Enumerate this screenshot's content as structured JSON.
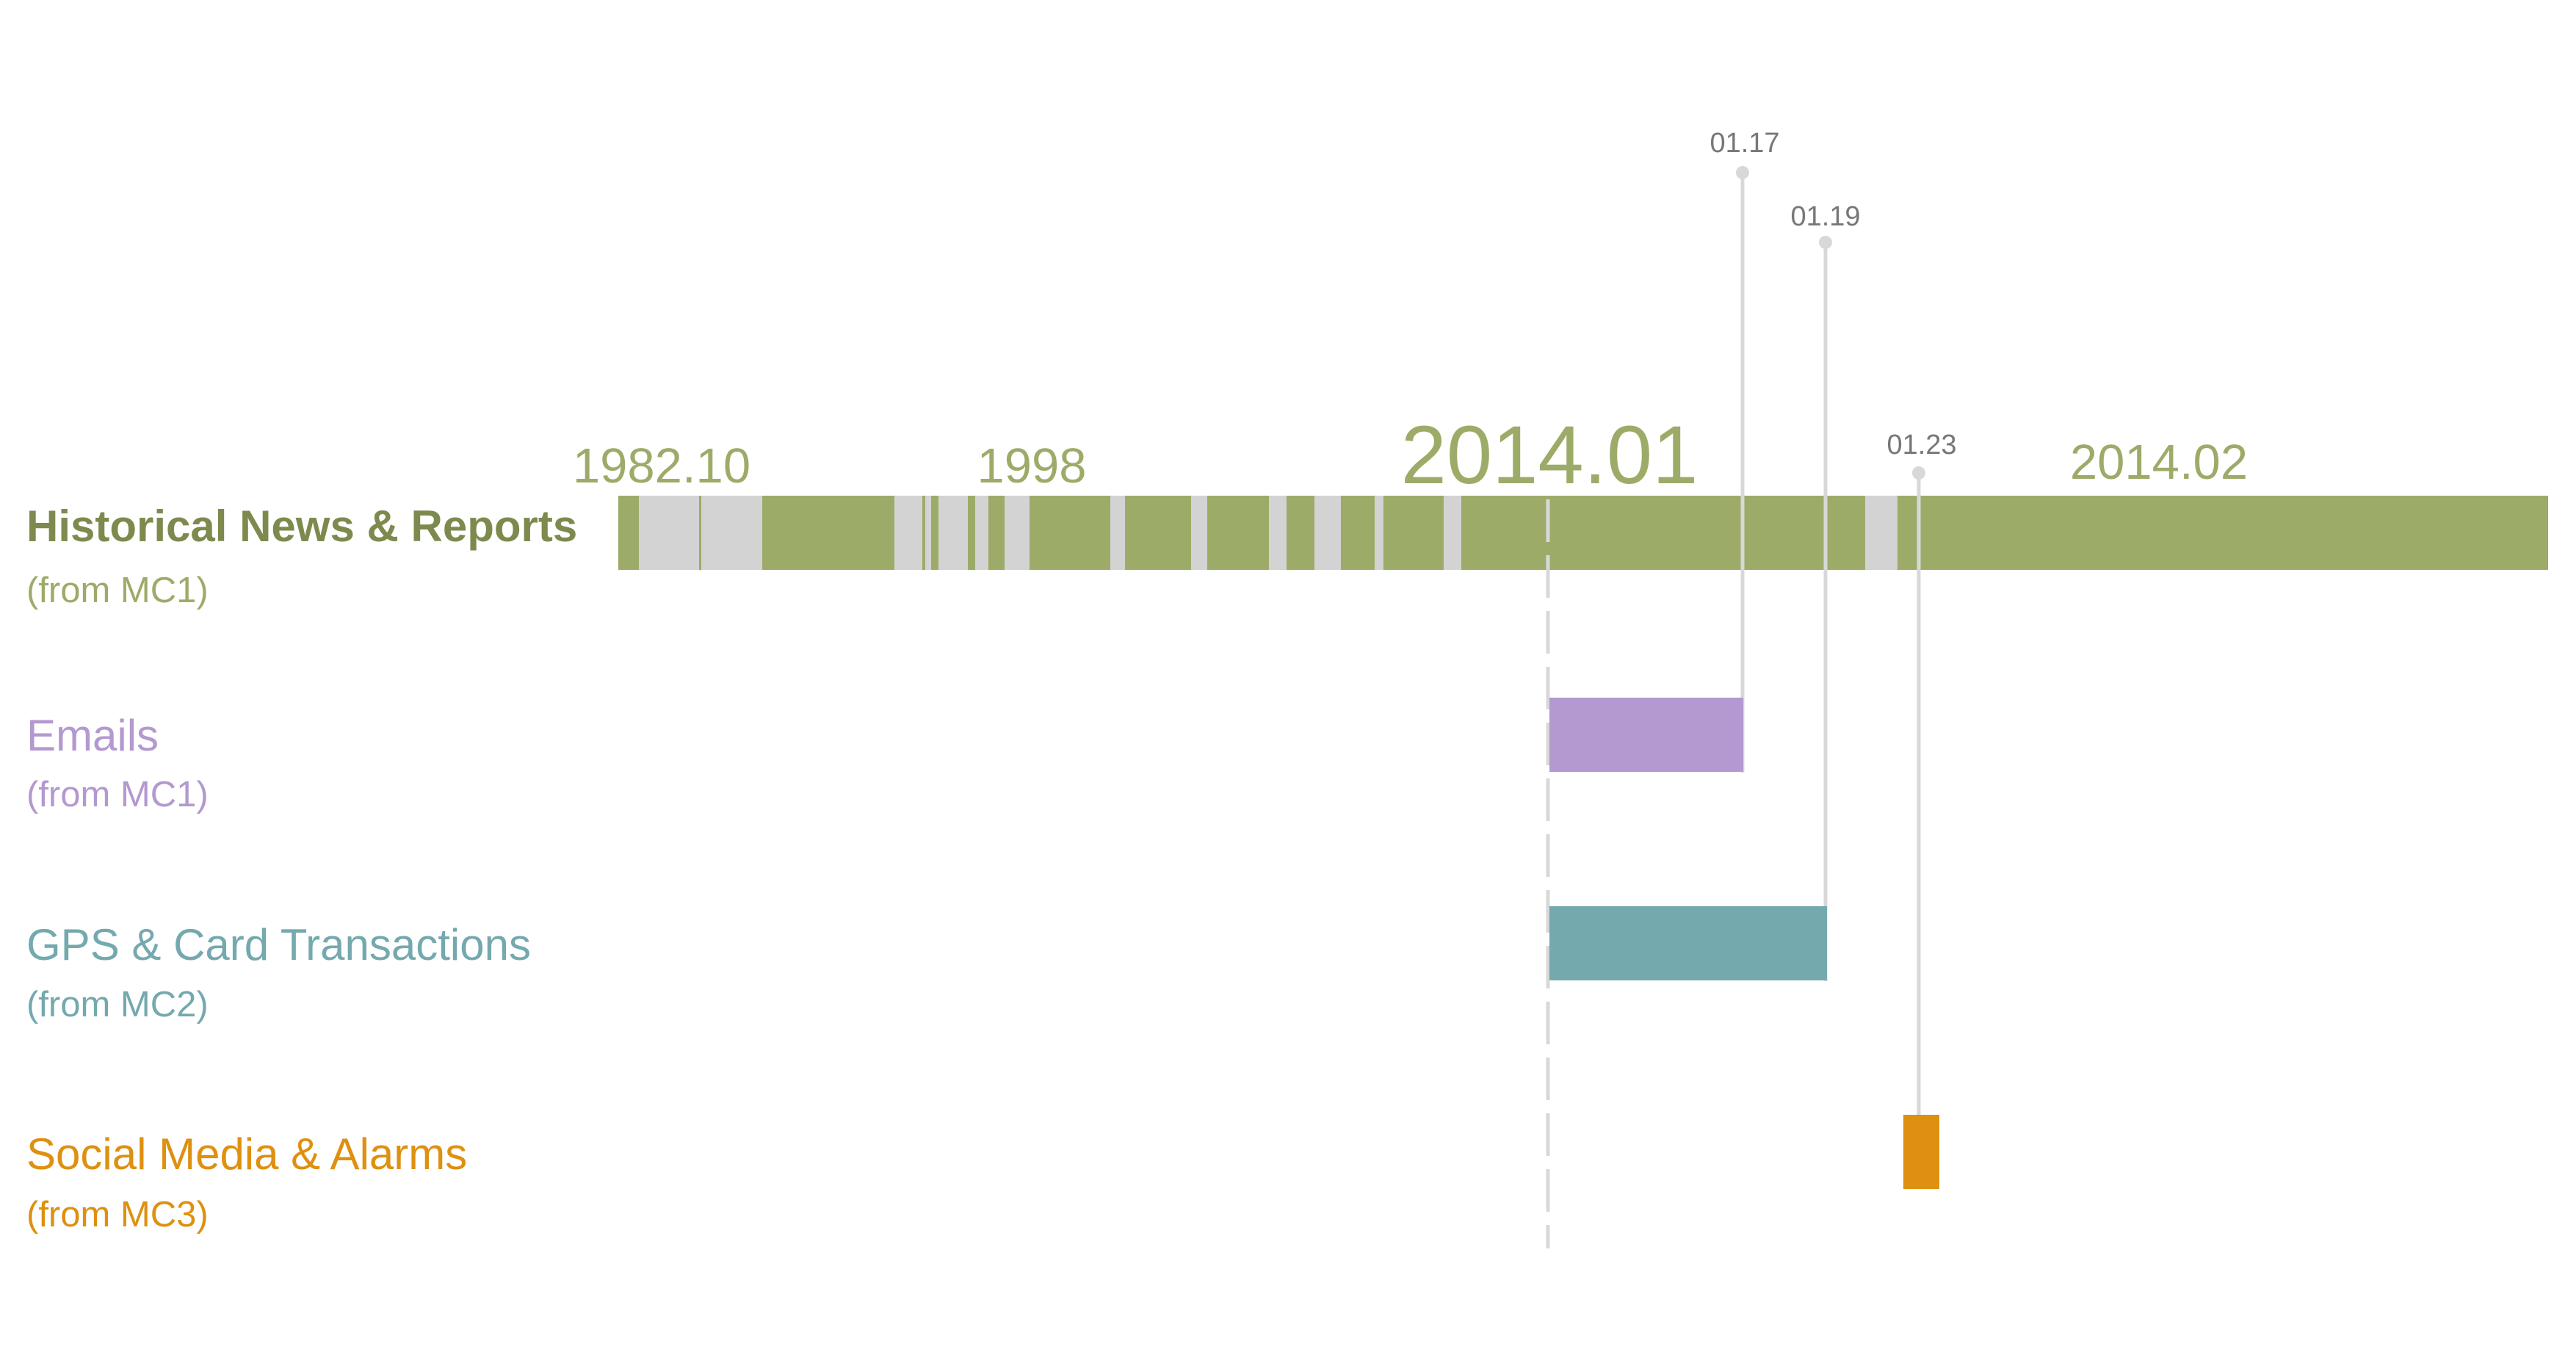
{
  "colors": {
    "news": "#9dab69",
    "news_title": "#7d8a4e",
    "gap": "#d3d3d3",
    "emails": "#b399cf",
    "gps": "#74a9ae",
    "social": "#de9010",
    "guide": "#d8d8d8",
    "callout_text": "#777777"
  },
  "rows": [
    {
      "key": "news",
      "title": "Historical  News & Reports",
      "source": "(from MC1)"
    },
    {
      "key": "emails",
      "title": "Emails",
      "source": "(from MC1)"
    },
    {
      "key": "gps",
      "title": "GPS & Card Transactions",
      "source": "(from MC2)"
    },
    {
      "key": "social",
      "title": "Social Media & Alarms",
      "source": "(from MC3)"
    }
  ],
  "era_labels": [
    {
      "text": "1982.10",
      "major": false
    },
    {
      "text": "1998",
      "major": false
    },
    {
      "text": "2014.01",
      "major": true
    },
    {
      "text": "2014.02",
      "major": false
    }
  ],
  "callouts": [
    "01.17",
    "01.19",
    "01.23"
  ],
  "chart_data": {
    "type": "timeline",
    "title": "",
    "series": [
      {
        "name": "Historical  News & Reports",
        "source": "(from MC1)",
        "start": "1982.10",
        "end": "2014.02"
      },
      {
        "name": "Emails",
        "source": "(from MC1)",
        "start": "2014.01",
        "end": "01.17"
      },
      {
        "name": "GPS & Card Transactions",
        "source": "(from MC2)",
        "start": "2014.01",
        "end": "01.19"
      },
      {
        "name": "Social Media & Alarms",
        "source": "(from MC3)",
        "start": "01.23",
        "end": "01.23"
      }
    ],
    "axis_marks": [
      "1982.10",
      "1998",
      "2014.01",
      "2014.02"
    ],
    "event_callouts": [
      "01.17",
      "01.19",
      "01.23"
    ]
  }
}
